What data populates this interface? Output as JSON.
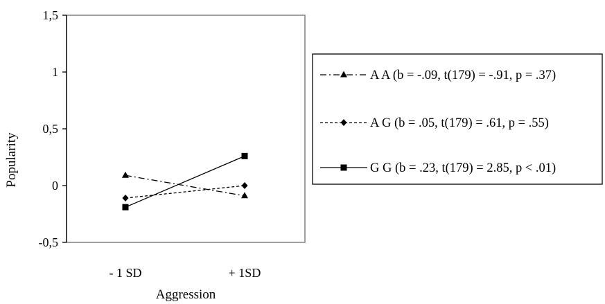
{
  "chart_data": {
    "type": "line",
    "xlabel": "Aggression",
    "ylabel": "Popularity",
    "categories": [
      "- 1 SD",
      "+ 1SD"
    ],
    "ylim": [
      -0.5,
      1.5
    ],
    "yticks": [
      -0.5,
      0,
      0.5,
      1,
      1.5
    ],
    "ytick_labels": [
      "-0,5",
      "0",
      "0,5",
      "1",
      "1,5"
    ],
    "grid": false,
    "legend_position": "right",
    "series": [
      {
        "name": "A A (b = -.09, t(179) = -.91, p = .37)",
        "values": [
          0.09,
          -0.09
        ],
        "marker": "triangle",
        "line_style": "dash-dot"
      },
      {
        "name": "A G (b = .05, t(179) = .61, p = .55)",
        "values": [
          -0.11,
          0.0
        ],
        "marker": "diamond",
        "line_style": "dotted"
      },
      {
        "name": "G G (b = .23, t(179) = 2.85, p < .01)",
        "values": [
          -0.19,
          0.26
        ],
        "marker": "square",
        "line_style": "solid"
      }
    ]
  }
}
